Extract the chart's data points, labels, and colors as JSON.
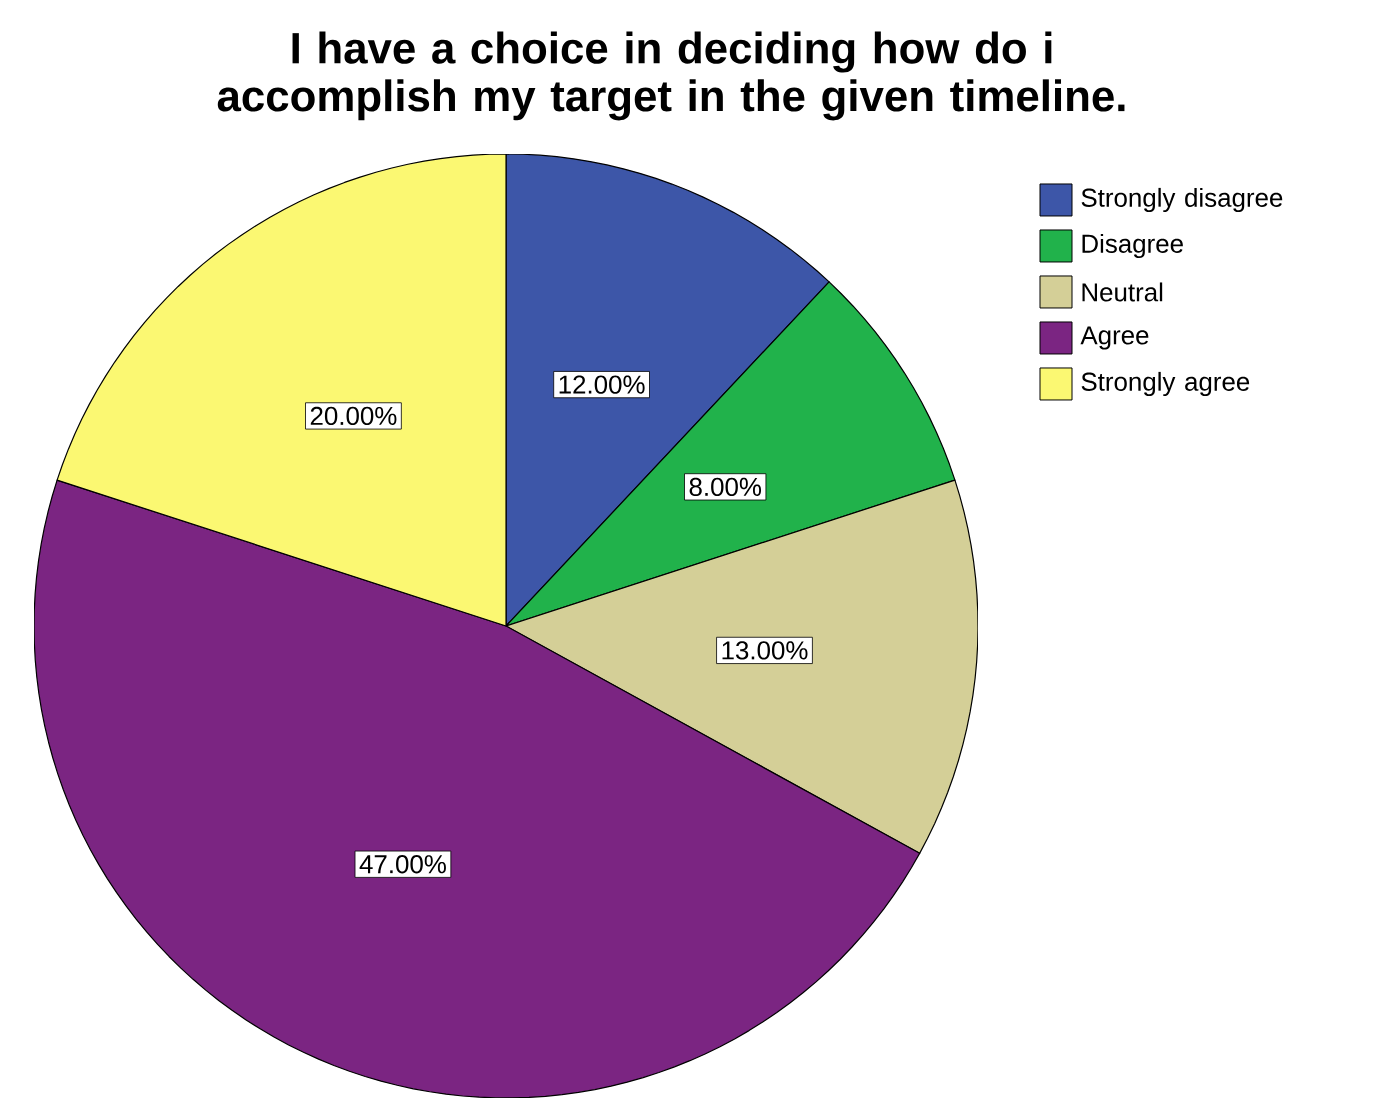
{
  "chart_data": {
    "type": "pie",
    "title": "I have a choice in deciding how do i accomplish my target in the given  timeline.",
    "categories": [
      "Strongly disagree",
      "Disagree",
      "Neutral",
      "Agree",
      "Strongly agree"
    ],
    "values": [
      12,
      8,
      13,
      47,
      20
    ],
    "colors": [
      "#3d56a8",
      "#21b24b",
      "#d4cf97",
      "#7b2582",
      "#fbf872"
    ],
    "value_labels": [
      "12.00%",
      "8.00%",
      "13.00%",
      "47.00%",
      "20.00%"
    ],
    "legend": "top right"
  }
}
